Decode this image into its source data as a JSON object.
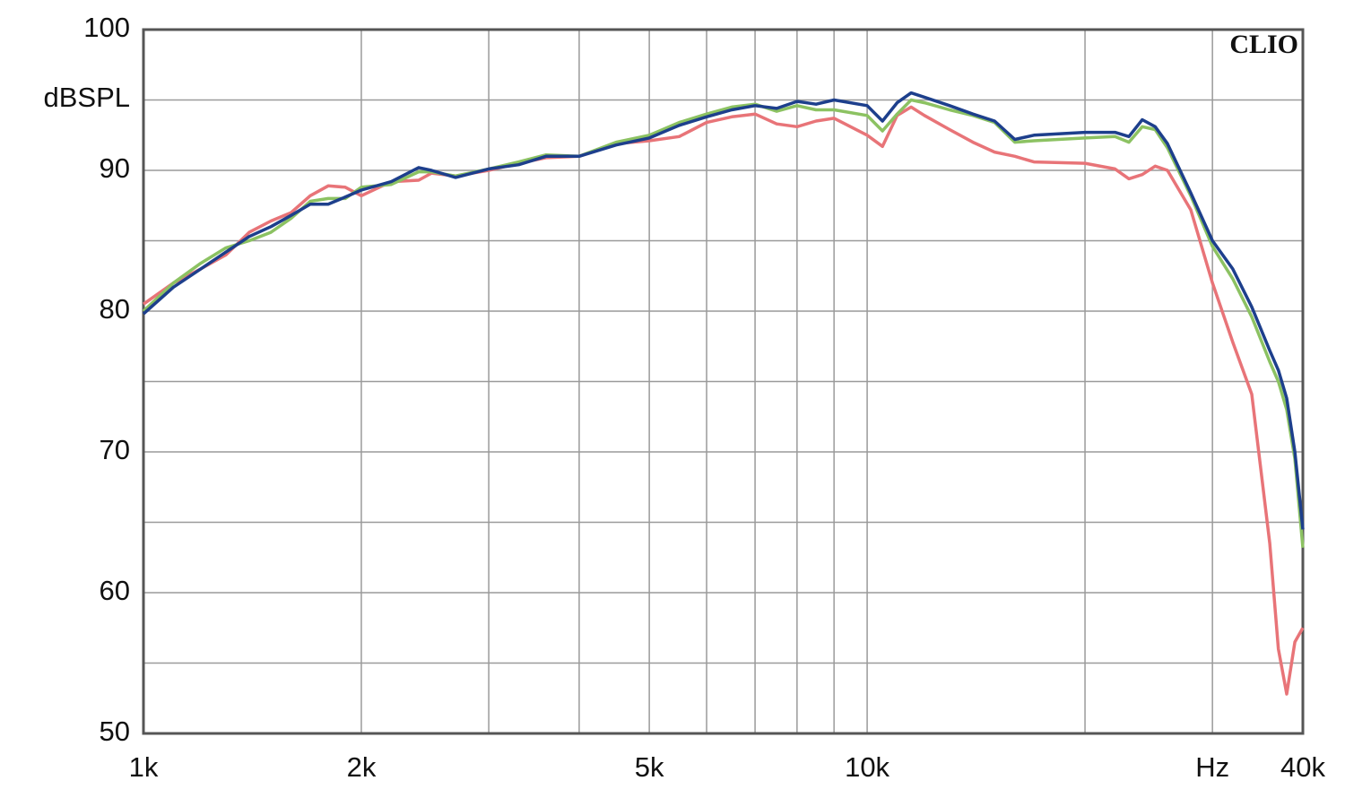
{
  "chart_data": {
    "type": "line",
    "y_label": "dBSPL",
    "annotation": "CLIO",
    "log_x": true,
    "grid": true,
    "xlim": [
      1000,
      40000
    ],
    "ylim": [
      50,
      100
    ],
    "xticks": [
      {
        "value": 1000,
        "label": "1k"
      },
      {
        "value": 2000,
        "label": "2k"
      },
      {
        "value": 5000,
        "label": "5k"
      },
      {
        "value": 10000,
        "label": "10k"
      },
      {
        "value": 30000,
        "label": "Hz"
      },
      {
        "value": 40000,
        "label": "40k"
      }
    ],
    "xminor_ticks": [
      3000,
      4000,
      6000,
      7000,
      8000,
      9000,
      20000
    ],
    "yticks": [
      50,
      60,
      70,
      80,
      90,
      100
    ],
    "yminor_ticks": [
      55,
      65,
      75,
      85,
      95
    ],
    "x": [
      1000,
      1100,
      1200,
      1300,
      1400,
      1500,
      1600,
      1700,
      1800,
      1900,
      2000,
      2200,
      2400,
      2500,
      2700,
      3000,
      3300,
      3600,
      4000,
      4500,
      5000,
      5500,
      6000,
      6500,
      7000,
      7500,
      8000,
      8500,
      9000,
      10000,
      10500,
      11000,
      11500,
      12000,
      13000,
      14000,
      15000,
      16000,
      17000,
      20000,
      22000,
      23000,
      24000,
      25000,
      26000,
      28000,
      30000,
      32000,
      34000,
      36000,
      37000,
      38000,
      39000,
      40000
    ],
    "series": [
      {
        "color": "#e87478",
        "values": [
          80.5,
          82.0,
          83.0,
          84.0,
          85.6,
          86.4,
          87.0,
          88.2,
          88.9,
          88.8,
          88.2,
          89.2,
          89.3,
          89.8,
          89.6,
          90.0,
          90.5,
          90.9,
          91.0,
          91.9,
          92.1,
          92.4,
          93.4,
          93.8,
          94.0,
          93.3,
          93.1,
          93.5,
          93.7,
          92.5,
          91.7,
          93.9,
          94.5,
          93.9,
          92.9,
          92.0,
          91.3,
          91.0,
          90.6,
          90.5,
          90.1,
          89.4,
          89.7,
          90.3,
          90.0,
          87.2,
          82.0,
          77.8,
          74.1,
          63.5,
          56.0,
          52.8,
          56.5,
          57.5
        ]
      },
      {
        "color": "#8cc262",
        "values": [
          80.0,
          82.0,
          83.4,
          84.5,
          85.0,
          85.6,
          86.6,
          87.8,
          88.0,
          88.0,
          88.8,
          89.0,
          89.9,
          89.9,
          89.6,
          90.1,
          90.6,
          91.1,
          91.0,
          92.0,
          92.5,
          93.4,
          94.0,
          94.5,
          94.7,
          94.2,
          94.6,
          94.3,
          94.3,
          93.9,
          92.8,
          94.0,
          95.0,
          94.8,
          94.3,
          93.9,
          93.4,
          92.0,
          92.1,
          92.3,
          92.4,
          92.0,
          93.1,
          92.9,
          91.6,
          88.2,
          84.6,
          82.3,
          79.6,
          76.4,
          75.0,
          73.0,
          69.5,
          63.2
        ]
      },
      {
        "color": "#1d3f8c",
        "values": [
          79.8,
          81.7,
          83.0,
          84.2,
          85.3,
          86.0,
          86.8,
          87.6,
          87.6,
          88.1,
          88.6,
          89.2,
          90.2,
          90.0,
          89.5,
          90.1,
          90.4,
          91.0,
          91.0,
          91.8,
          92.3,
          93.2,
          93.8,
          94.3,
          94.6,
          94.4,
          94.9,
          94.7,
          95.0,
          94.6,
          93.5,
          94.8,
          95.5,
          95.2,
          94.6,
          94.0,
          93.5,
          92.2,
          92.5,
          92.7,
          92.7,
          92.4,
          93.6,
          93.1,
          91.9,
          88.4,
          85.0,
          83.0,
          80.3,
          77.2,
          75.8,
          73.8,
          70.0,
          64.5
        ]
      }
    ]
  }
}
